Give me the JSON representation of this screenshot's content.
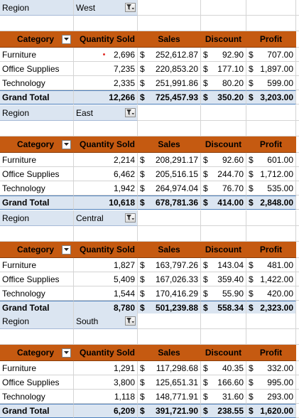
{
  "labels": {
    "region": "Region",
    "category": "Category",
    "quantity_sold": "Quantity Sold",
    "sales": "Sales",
    "discount": "Discount",
    "profit": "Profit",
    "currency": "$"
  },
  "icons": {
    "filter": "funnel-filter-icon",
    "dropdown": "dropdown-arrow-icon"
  },
  "colors": {
    "header_bg": "#c55a11",
    "total_bg": "#dbe5f1",
    "filter_bg": "#dbe5f1"
  },
  "blocks": [
    {
      "region": "West",
      "rows": [
        {
          "category": "Furniture",
          "qty": "2,696",
          "sales": "252,612.87",
          "discount": "92.90",
          "profit": "707.00"
        },
        {
          "category": "Office Supplies",
          "qty": "7,235",
          "sales": "220,853.20",
          "discount": "177.10",
          "profit": "1,897.00"
        },
        {
          "category": "Technology",
          "qty": "2,335",
          "sales": "251,991.86",
          "discount": "80.20",
          "profit": "599.00"
        }
      ],
      "total": {
        "label": "Grand Total",
        "qty": "12,266",
        "sales": "725,457.93",
        "discount": "350.20",
        "profit": "3,203.00"
      }
    },
    {
      "region": "East",
      "rows": [
        {
          "category": "Furniture",
          "qty": "2,214",
          "sales": "208,291.17",
          "discount": "92.60",
          "profit": "601.00"
        },
        {
          "category": "Office Supplies",
          "qty": "6,462",
          "sales": "205,516.15",
          "discount": "244.70",
          "profit": "1,712.00"
        },
        {
          "category": "Technology",
          "qty": "1,942",
          "sales": "264,974.04",
          "discount": "76.70",
          "profit": "535.00"
        }
      ],
      "total": {
        "label": "Grand Total",
        "qty": "10,618",
        "sales": "678,781.36",
        "discount": "414.00",
        "profit": "2,848.00"
      }
    },
    {
      "region": "Central",
      "rows": [
        {
          "category": "Furniture",
          "qty": "1,827",
          "sales": "163,797.26",
          "discount": "143.04",
          "profit": "481.00"
        },
        {
          "category": "Office Supplies",
          "qty": "5,409",
          "sales": "167,026.33",
          "discount": "359.40",
          "profit": "1,422.00"
        },
        {
          "category": "Technology",
          "qty": "1,544",
          "sales": "170,416.29",
          "discount": "55.90",
          "profit": "420.00"
        }
      ],
      "total": {
        "label": "Grand Total",
        "qty": "8,780",
        "sales": "501,239.88",
        "discount": "558.34",
        "profit": "2,323.00"
      }
    },
    {
      "region": "South",
      "rows": [
        {
          "category": "Furniture",
          "qty": "1,291",
          "sales": "117,298.68",
          "discount": "40.35",
          "profit": "332.00"
        },
        {
          "category": "Office Supplies",
          "qty": "3,800",
          "sales": "125,651.31",
          "discount": "166.60",
          "profit": "995.00"
        },
        {
          "category": "Technology",
          "qty": "1,118",
          "sales": "148,771.91",
          "discount": "31.60",
          "profit": "293.00"
        }
      ],
      "total": {
        "label": "Grand Total",
        "qty": "6,209",
        "sales": "391,721.90",
        "discount": "238.55",
        "profit": "1,620.00"
      }
    }
  ]
}
